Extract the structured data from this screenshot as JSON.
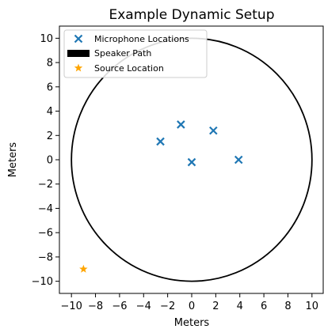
{
  "chart_data": {
    "type": "scatter",
    "title": "Example Dynamic Setup",
    "xlabel": "Meters",
    "ylabel": "Meters",
    "xlim": [
      -11,
      11
    ],
    "ylim": [
      -11,
      11
    ],
    "x_ticks": [
      -10,
      -8,
      -6,
      -4,
      -2,
      0,
      2,
      4,
      6,
      8,
      10
    ],
    "y_ticks": [
      -10,
      -8,
      -6,
      -4,
      -2,
      0,
      2,
      4,
      6,
      8,
      10
    ],
    "grid": false,
    "legend": {
      "placement": "top-left",
      "entries": [
        "Microphone Locations",
        "Speaker Path",
        "Source Location"
      ]
    },
    "series": [
      {
        "name": "Microphone Locations",
        "kind": "scatter",
        "marker": "x",
        "color": "#1f77b4",
        "points": [
          {
            "x": -2.6,
            "y": 1.5
          },
          {
            "x": -0.9,
            "y": 2.9
          },
          {
            "x": 1.8,
            "y": 2.4
          },
          {
            "x": 0.0,
            "y": -0.2
          },
          {
            "x": 3.9,
            "y": 0.0
          }
        ]
      },
      {
        "name": "Speaker Path",
        "kind": "circle",
        "color": "#000000",
        "center": {
          "x": 0,
          "y": 0
        },
        "radius": 10
      },
      {
        "name": "Source Location",
        "kind": "scatter",
        "marker": "star",
        "color": "#ffa500",
        "points": [
          {
            "x": -9.0,
            "y": -9.0
          }
        ]
      }
    ]
  }
}
